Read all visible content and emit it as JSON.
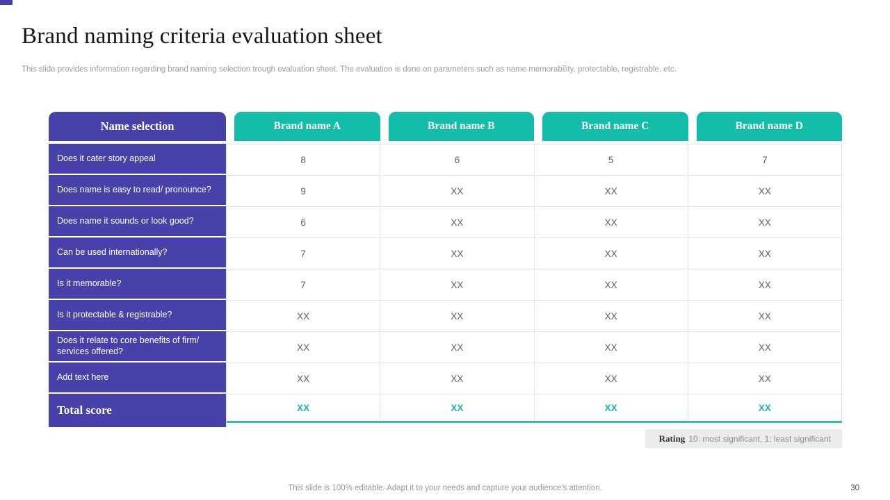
{
  "slide": {
    "title": "Brand naming criteria evaluation sheet",
    "subtitle": "This slide provides information regarding brand naming selection trough evaluation sheet. The evaluation is done on parameters such as name memorability, protectable, registrable, etc.",
    "footer": "This slide is 100% editable. Adapt it to your needs and capture your audience's attention.",
    "page_number": "30"
  },
  "colors": {
    "purple": "#4742a9",
    "teal": "#14bcaa",
    "teal_text": "#1fb5a4",
    "note_bg": "#ececec"
  },
  "table": {
    "corner_header": "Name selection",
    "column_headers": [
      "Brand name A",
      "Brand name B",
      "Brand name C",
      "Brand name D"
    ],
    "rows": [
      {
        "label": "Does it cater story appeal",
        "values": [
          "8",
          "6",
          "5",
          "7"
        ]
      },
      {
        "label": "Does name is easy to read/ pronounce?",
        "values": [
          "9",
          "XX",
          "XX",
          "XX"
        ]
      },
      {
        "label": "Does name it sounds or look good?",
        "values": [
          "6",
          "XX",
          "XX",
          "XX"
        ]
      },
      {
        "label": "Can be used internationally?",
        "values": [
          "7",
          "XX",
          "XX",
          "XX"
        ]
      },
      {
        "label": "Is it memorable?",
        "values": [
          "7",
          "XX",
          "XX",
          "XX"
        ]
      },
      {
        "label": "Is it protectable & registrable?",
        "values": [
          "XX",
          "XX",
          "XX",
          "XX"
        ]
      },
      {
        "label": "Does it relate to core benefits of firm/ services offered?",
        "values": [
          "XX",
          "XX",
          "XX",
          "XX"
        ]
      },
      {
        "label": "Add text here",
        "values": [
          "XX",
          "XX",
          "XX",
          "XX"
        ]
      },
      {
        "label": "Total score",
        "values": [
          "XX",
          "XX",
          "XX",
          "XX"
        ]
      }
    ],
    "note": {
      "label": "Rating",
      "text": "10: most significant, 1: least significant"
    }
  }
}
